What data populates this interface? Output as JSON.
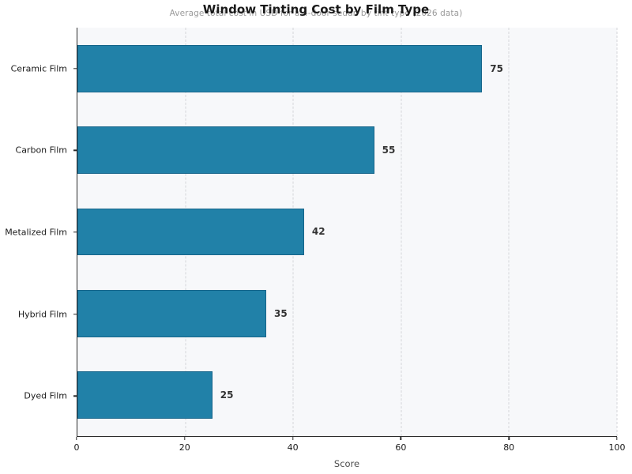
{
  "chart_data": {
    "type": "bar",
    "orientation": "horizontal",
    "title": "Window Tinting Cost by Film Type",
    "subtitle": "Average total cost in USD for a 4-door sedan by tint type (2026 data)",
    "categories": [
      "Ceramic Film",
      "Carbon Film",
      "Metalized Film",
      "Hybrid Film",
      "Dyed Film"
    ],
    "values": [
      75,
      55,
      42,
      35,
      25
    ],
    "value_labels": [
      "75",
      "55",
      "42",
      "35",
      "25"
    ],
    "xlabel": "Score",
    "xlim": [
      0,
      100
    ],
    "xticks": [
      0,
      20,
      40,
      60,
      80,
      100
    ],
    "xtick_labels": [
      "0",
      "20",
      "40",
      "60",
      "80",
      "100"
    ],
    "grid": "vertical-dashed",
    "legend": "none",
    "colors": {
      "bar": "#2181a8",
      "bar_edge": "#16658a",
      "plot_background": "#f7f8fa",
      "value_label": "#333333",
      "subtitle": "#9a9a9a"
    }
  }
}
